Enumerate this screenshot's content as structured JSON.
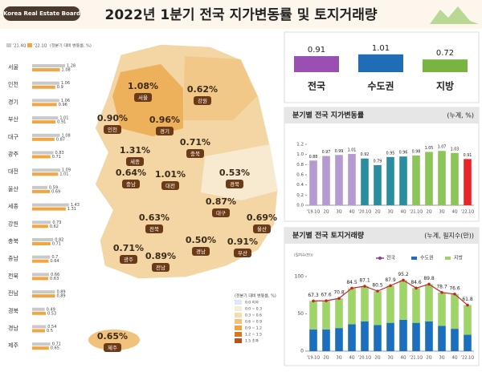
{
  "header": {
    "logo": "Korea Real Estate Board",
    "title": "2022년 1분기 전국 지가변동률 및 토지거래량"
  },
  "map": {
    "labels": [
      {
        "region": "서울",
        "value": "1.08%"
      },
      {
        "region": "인천",
        "value": "0.90%"
      },
      {
        "region": "경기",
        "value": "0.96%"
      },
      {
        "region": "강원",
        "value": "0.62%"
      },
      {
        "region": "세종",
        "value": "1.31%"
      },
      {
        "region": "충북",
        "value": "0.71%"
      },
      {
        "region": "충남",
        "value": "0.64%"
      },
      {
        "region": "대전",
        "value": "1.01%"
      },
      {
        "region": "경북",
        "value": "0.53%"
      },
      {
        "region": "대구",
        "value": "0.87%"
      },
      {
        "region": "전북",
        "value": "0.63%"
      },
      {
        "region": "울산",
        "value": "0.69%"
      },
      {
        "region": "경남",
        "value": "0.50%"
      },
      {
        "region": "부산",
        "value": "0.91%"
      },
      {
        "region": "광주",
        "value": "0.71%"
      },
      {
        "region": "전남",
        "value": "0.89%"
      },
      {
        "region": "제주",
        "value": "0.65%"
      }
    ],
    "legend_title": "(전분기 대비 변동률, %)",
    "legend": [
      {
        "label": "0.0 이하",
        "color": "#dfe9f5"
      },
      {
        "label": "0.0 ~ 0.3",
        "color": "#f7ecd6"
      },
      {
        "label": "0.3 ~ 0.6",
        "color": "#f5dcae"
      },
      {
        "label": "0.6 ~ 0.9",
        "color": "#f0c27c"
      },
      {
        "label": "0.9 ~ 1.2",
        "color": "#eba648"
      },
      {
        "label": "1.2 ~ 1.5",
        "color": "#d9761e"
      },
      {
        "label": "1.5 초과",
        "color": "#b7521a"
      }
    ]
  },
  "chart_data": [
    {
      "type": "hbar",
      "categories": [
        "서울",
        "인천",
        "경기",
        "부산",
        "대구",
        "광주",
        "대전",
        "울산",
        "세종",
        "강원",
        "충북",
        "충남",
        "전북",
        "전남",
        "경북",
        "경남",
        "제주"
      ],
      "series": [
        {
          "name": "'21.4Q",
          "color": "#c9c9c9",
          "values": [
            1.28,
            1.06,
            1.06,
            1.01,
            1.08,
            0.83,
            1.09,
            0.59,
            1.43,
            0.73,
            0.82,
            0.7,
            0.66,
            0.89,
            0.49,
            0.54,
            0.71
          ]
        },
        {
          "name": "'22.1Q",
          "color": "#f2a541",
          "values": [
            1.08,
            0.9,
            0.96,
            0.91,
            0.87,
            0.71,
            1.01,
            0.69,
            1.31,
            0.62,
            0.71,
            0.64,
            0.63,
            0.89,
            0.53,
            0.5,
            0.65
          ]
        }
      ],
      "subtitle": "(전분기 대비 변동률, %)"
    },
    {
      "type": "bar",
      "categories": [
        "전국",
        "수도권",
        "지방"
      ],
      "values": [
        0.91,
        1.01,
        0.72
      ],
      "colors": [
        "#9a4fb3",
        "#1f6db5",
        "#79b443"
      ]
    },
    {
      "type": "bar",
      "title": "분기별 전국 지가변동률",
      "subtitle": "(누계, %)",
      "categories": [
        "'19.1Q",
        "2Q",
        "3Q",
        "4Q",
        "'20.1Q",
        "2Q",
        "3Q",
        "4Q",
        "'21.1Q",
        "2Q",
        "3Q",
        "4Q",
        "'22.1Q"
      ],
      "values": [
        0.88,
        0.97,
        0.99,
        1.01,
        0.92,
        0.79,
        0.95,
        0.96,
        0.98,
        1.05,
        1.07,
        1.03,
        0.91
      ],
      "colors": [
        "#b59ad0",
        "#b59ad0",
        "#b59ad0",
        "#b59ad0",
        "#2b8ea0",
        "#2b8ea0",
        "#2b8ea0",
        "#2b8ea0",
        "#8cc55a",
        "#8cc55a",
        "#8cc55a",
        "#8cc55a",
        "#e8262a"
      ],
      "ylim": [
        0,
        1.2
      ],
      "yticks": [
        {
          "value": 0,
          "label": "0.0"
        },
        {
          "value": 0.2,
          "label": "0.2"
        },
        {
          "value": 0.4,
          "label": "0.4"
        },
        {
          "value": 0.6,
          "label": "0.6"
        },
        {
          "value": 0.8,
          "label": "0.8"
        },
        {
          "value": 1,
          "label": "1.0"
        },
        {
          "value": 1.2,
          "label": "1.2"
        }
      ]
    },
    {
      "type": "combo",
      "title": "분기별 전국 토지거래량",
      "subtitle": "(누계, 필지수(만))",
      "y_label": "(필지수(만))",
      "categories": [
        "'19.1Q",
        "2Q",
        "3Q",
        "4Q",
        "'20.1Q",
        "2Q",
        "3Q",
        "4Q",
        "'21.1Q",
        "2Q",
        "3Q",
        "4Q",
        "'22.1Q"
      ],
      "series": [
        {
          "name": "전국",
          "color": "#8b3aa0",
          "kind": "line",
          "values": [
            67.3,
            67.6,
            70.8,
            84.5,
            87.1,
            80.5,
            87.9,
            95.2,
            84.6,
            89.8,
            78.7,
            76.6,
            61.8
          ]
        },
        {
          "name": "수도권",
          "color": "#1c6fbf",
          "kind": "bar",
          "values": [
            29,
            29,
            31,
            36,
            40,
            35,
            38,
            42,
            38,
            40,
            34,
            30,
            22
          ]
        },
        {
          "name": "지방",
          "color": "#9fd46b",
          "kind": "bar",
          "values": [
            38.3,
            38.6,
            39.8,
            48.5,
            47.1,
            45.5,
            49.9,
            53.2,
            46.6,
            49.8,
            44.7,
            46.6,
            39.8
          ]
        }
      ],
      "ylim": [
        0,
        100
      ],
      "yticks": [
        0,
        50,
        100
      ]
    }
  ]
}
